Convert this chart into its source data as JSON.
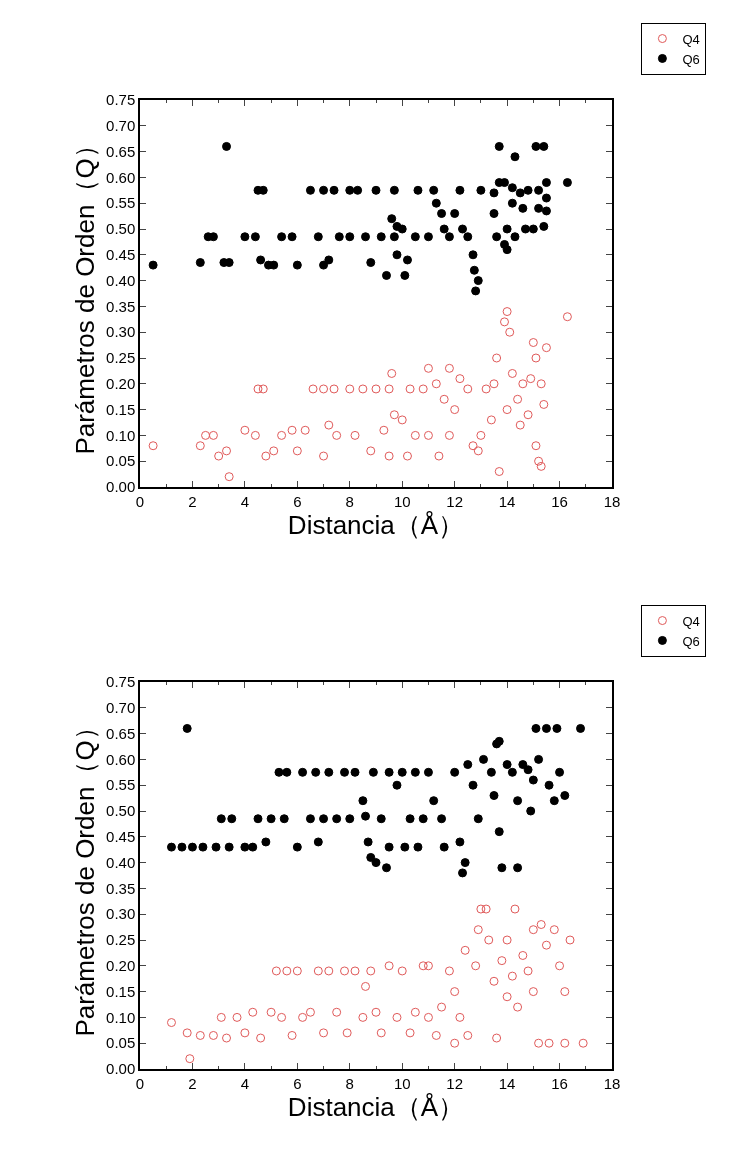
{
  "chart_data": [
    {
      "type": "scatter",
      "xlabel": "Distancia（Å）",
      "ylabel": "Parámetros de Orden（Q）",
      "legend": "top right",
      "grid": false,
      "xlim": [
        0,
        18
      ],
      "xticks": [
        0,
        2,
        4,
        6,
        8,
        10,
        12,
        14,
        16,
        18
      ],
      "ylim": [
        0,
        0.75
      ],
      "yticks": [
        {
          "value": 0,
          "label": "0.00"
        },
        {
          "value": 0.05,
          "label": "0.05"
        },
        {
          "value": 0.1,
          "label": "0.10"
        },
        {
          "value": 0.15,
          "label": "0.15"
        },
        {
          "value": 0.2,
          "label": "0.20"
        },
        {
          "value": 0.25,
          "label": "0.25"
        },
        {
          "value": 0.3,
          "label": "0.30"
        },
        {
          "value": 0.35,
          "label": "0.35"
        },
        {
          "value": 0.4,
          "label": "0.40"
        },
        {
          "value": 0.45,
          "label": "0.45"
        },
        {
          "value": 0.5,
          "label": "0.50"
        },
        {
          "value": 0.55,
          "label": "0.55"
        },
        {
          "value": 0.6,
          "label": "0.60"
        },
        {
          "value": 0.65,
          "label": "0.65"
        },
        {
          "value": 0.7,
          "label": "0.70"
        },
        {
          "value": 0.75,
          "label": "0.75"
        }
      ],
      "series": [
        {
          "name": "Q4",
          "color": "#e05a5a",
          "marker": "circle-open",
          "x": [
            0.5,
            2.3,
            2.5,
            2.8,
            3.0,
            3.3,
            3.4,
            4.0,
            4.4,
            4.5,
            4.7,
            4.8,
            5.1,
            5.4,
            5.8,
            6.0,
            6.3,
            6.6,
            7.0,
            7.2,
            7.0,
            7.5,
            7.4,
            8.0,
            8.2,
            8.5,
            9.0,
            9.5,
            8.8,
            9.3,
            9.5,
            9.6,
            9.7,
            10.0,
            10.3,
            10.8,
            10.2,
            10.5,
            11.0,
            11.3,
            11.6,
            11.4,
            11.8,
            12.0,
            12.2,
            12.5,
            12.7,
            12.9,
            13.0,
            13.2,
            13.5,
            13.6,
            13.9,
            14.0,
            14.1,
            14.2,
            14.4,
            14.5,
            14.6,
            14.9,
            15.0,
            15.1,
            15.3,
            15.4,
            15.5,
            15.1,
            15.2,
            15.3,
            13.7,
            16.3,
            11.8,
            11.0,
            14.0,
            13.4,
            14.8
          ],
          "values": [
            0.08,
            0.08,
            0.1,
            0.1,
            0.06,
            0.07,
            0.02,
            0.11,
            0.1,
            0.19,
            0.19,
            0.06,
            0.07,
            0.1,
            0.11,
            0.07,
            0.11,
            0.19,
            0.19,
            0.12,
            0.06,
            0.1,
            0.19,
            0.19,
            0.1,
            0.19,
            0.19,
            0.19,
            0.07,
            0.11,
            0.06,
            0.22,
            0.14,
            0.13,
            0.19,
            0.19,
            0.06,
            0.1,
            0.1,
            0.2,
            0.17,
            0.06,
            0.1,
            0.15,
            0.21,
            0.19,
            0.08,
            0.07,
            0.1,
            0.19,
            0.2,
            0.25,
            0.32,
            0.34,
            0.3,
            0.22,
            0.17,
            0.12,
            0.2,
            0.21,
            0.28,
            0.25,
            0.2,
            0.16,
            0.27,
            0.08,
            0.05,
            0.04,
            0.03,
            0.33,
            0.23,
            0.23,
            0.15,
            0.13,
            0.14
          ]
        },
        {
          "name": "Q6",
          "color": "#000000",
          "marker": "circle",
          "x": [
            0.5,
            2.3,
            2.6,
            2.8,
            3.2,
            3.4,
            3.3,
            4.5,
            4.7,
            4.0,
            4.4,
            4.6,
            4.9,
            5.1,
            5.4,
            5.8,
            6.0,
            6.5,
            7.0,
            6.8,
            7.2,
            7.0,
            7.4,
            8.0,
            7.6,
            8.0,
            8.3,
            9.0,
            9.7,
            8.6,
            9.2,
            9.7,
            8.8,
            9.6,
            9.8,
            10.0,
            9.4,
            10.1,
            9.8,
            10.2,
            10.6,
            11.2,
            10.5,
            11.0,
            11.3,
            11.5,
            11.8,
            12.2,
            12.5,
            12.7,
            12.75,
            12.8,
            12.9,
            13.0,
            13.5,
            13.7,
            13.9,
            14.2,
            14.5,
            14.8,
            15.2,
            13.6,
            14.0,
            14.3,
            14.7,
            15.0,
            15.4,
            13.5,
            14.2,
            14.6,
            15.2,
            15.5,
            15.5,
            13.9,
            14.0,
            13.7,
            14.3,
            15.1,
            15.4,
            16.3,
            15.5,
            12.0,
            11.6,
            12.3
          ],
          "values": [
            0.43,
            0.435,
            0.485,
            0.485,
            0.435,
            0.435,
            0.66,
            0.575,
            0.575,
            0.485,
            0.485,
            0.44,
            0.43,
            0.43,
            0.485,
            0.485,
            0.43,
            0.575,
            0.575,
            0.485,
            0.44,
            0.43,
            0.575,
            0.575,
            0.485,
            0.485,
            0.575,
            0.575,
            0.575,
            0.485,
            0.485,
            0.485,
            0.435,
            0.52,
            0.505,
            0.5,
            0.41,
            0.41,
            0.45,
            0.44,
            0.575,
            0.575,
            0.485,
            0.485,
            0.55,
            0.53,
            0.485,
            0.575,
            0.485,
            0.45,
            0.42,
            0.38,
            0.4,
            0.575,
            0.57,
            0.59,
            0.59,
            0.58,
            0.57,
            0.575,
            0.575,
            0.485,
            0.5,
            0.485,
            0.5,
            0.5,
            0.505,
            0.53,
            0.55,
            0.54,
            0.54,
            0.535,
            0.56,
            0.47,
            0.46,
            0.66,
            0.64,
            0.66,
            0.66,
            0.59,
            0.59,
            0.53,
            0.5,
            0.5
          ]
        }
      ]
    },
    {
      "type": "scatter",
      "xlabel": "Distancia（Å）",
      "ylabel": "Parámetros de Orden（Q）",
      "legend": "top right",
      "grid": false,
      "xlim": [
        0,
        18
      ],
      "xticks": [
        0,
        2,
        4,
        6,
        8,
        10,
        12,
        14,
        16,
        18
      ],
      "ylim": [
        0,
        0.75
      ],
      "yticks": [
        {
          "value": 0,
          "label": "0.00"
        },
        {
          "value": 0.05,
          "label": "0.05"
        },
        {
          "value": 0.1,
          "label": "0.10"
        },
        {
          "value": 0.15,
          "label": "0.15"
        },
        {
          "value": 0.2,
          "label": "0.20"
        },
        {
          "value": 0.25,
          "label": "0.25"
        },
        {
          "value": 0.3,
          "label": "0.30"
        },
        {
          "value": 0.35,
          "label": "0.35"
        },
        {
          "value": 0.4,
          "label": "0.40"
        },
        {
          "value": 0.45,
          "label": "0.45"
        },
        {
          "value": 0.5,
          "label": "0.50"
        },
        {
          "value": 0.55,
          "label": "0.55"
        },
        {
          "value": 0.6,
          "label": "0.60"
        },
        {
          "value": 0.65,
          "label": "0.65"
        },
        {
          "value": 0.7,
          "label": "0.70"
        },
        {
          "value": 0.75,
          "label": "0.75"
        }
      ],
      "series": [
        {
          "name": "Q4",
          "color": "#e05a5a",
          "marker": "circle-open",
          "x": [
            1.2,
            1.9,
            1.8,
            2.3,
            2.8,
            3.1,
            3.3,
            3.7,
            4.0,
            4.3,
            4.6,
            5.0,
            5.2,
            5.6,
            5.4,
            5.8,
            6.0,
            6.2,
            6.5,
            6.8,
            7.0,
            7.2,
            7.5,
            7.8,
            7.9,
            8.2,
            8.5,
            8.6,
            8.8,
            9.0,
            9.2,
            9.5,
            9.8,
            10.0,
            10.3,
            10.5,
            10.8,
            11.0,
            11.3,
            11.5,
            11.8,
            12.0,
            12.2,
            12.4,
            12.5,
            12.8,
            12.9,
            13.0,
            13.2,
            13.3,
            13.5,
            13.6,
            13.8,
            14.0,
            14.2,
            14.3,
            14.4,
            14.6,
            14.8,
            15.0,
            15.2,
            15.3,
            15.5,
            15.6,
            15.8,
            16.0,
            16.2,
            16.4,
            16.2,
            16.9,
            12.0,
            11.0,
            14.0,
            15.0
          ],
          "values": [
            0.09,
            0.02,
            0.07,
            0.065,
            0.065,
            0.1,
            0.06,
            0.1,
            0.07,
            0.11,
            0.06,
            0.11,
            0.19,
            0.19,
            0.1,
            0.065,
            0.19,
            0.1,
            0.11,
            0.19,
            0.07,
            0.19,
            0.11,
            0.19,
            0.07,
            0.19,
            0.1,
            0.16,
            0.19,
            0.11,
            0.07,
            0.2,
            0.1,
            0.19,
            0.07,
            0.11,
            0.2,
            0.1,
            0.065,
            0.12,
            0.19,
            0.15,
            0.1,
            0.23,
            0.065,
            0.2,
            0.27,
            0.31,
            0.31,
            0.25,
            0.17,
            0.06,
            0.21,
            0.25,
            0.18,
            0.31,
            0.12,
            0.22,
            0.19,
            0.27,
            0.05,
            0.28,
            0.24,
            0.05,
            0.27,
            0.2,
            0.15,
            0.25,
            0.05,
            0.05,
            0.05,
            0.2,
            0.14,
            0.15
          ]
        },
        {
          "name": "Q6",
          "color": "#000000",
          "marker": "circle",
          "x": [
            1.2,
            1.8,
            1.6,
            2.0,
            2.4,
            2.9,
            3.1,
            3.5,
            3.4,
            4.0,
            4.3,
            4.5,
            4.8,
            5.0,
            5.3,
            5.6,
            5.5,
            6.0,
            6.2,
            6.5,
            6.7,
            6.8,
            7.2,
            7.0,
            7.5,
            7.8,
            8.2,
            8.0,
            8.5,
            8.6,
            8.7,
            8.8,
            9.0,
            9.4,
            8.9,
            9.5,
            9.2,
            9.5,
            9.8,
            10.1,
            10.0,
            10.5,
            10.3,
            10.8,
            10.6,
            11.0,
            11.2,
            11.5,
            11.6,
            12.0,
            12.2,
            12.3,
            12.4,
            12.5,
            12.7,
            12.9,
            13.1,
            13.4,
            13.5,
            13.6,
            13.7,
            13.7,
            13.8,
            14.0,
            14.2,
            14.4,
            14.4,
            14.6,
            14.8,
            15.0,
            15.2,
            14.9,
            15.6,
            15.8,
            15.1,
            15.5,
            15.9,
            16.2,
            16.8,
            16.0
          ],
          "values": [
            0.43,
            0.66,
            0.43,
            0.43,
            0.43,
            0.43,
            0.485,
            0.485,
            0.43,
            0.43,
            0.43,
            0.485,
            0.44,
            0.485,
            0.575,
            0.575,
            0.485,
            0.43,
            0.575,
            0.485,
            0.575,
            0.44,
            0.575,
            0.485,
            0.485,
            0.575,
            0.575,
            0.485,
            0.52,
            0.49,
            0.44,
            0.41,
            0.4,
            0.39,
            0.575,
            0.575,
            0.485,
            0.43,
            0.55,
            0.43,
            0.575,
            0.575,
            0.485,
            0.485,
            0.43,
            0.575,
            0.52,
            0.485,
            0.43,
            0.575,
            0.44,
            0.38,
            0.4,
            0.59,
            0.55,
            0.485,
            0.6,
            0.575,
            0.53,
            0.63,
            0.635,
            0.46,
            0.39,
            0.59,
            0.575,
            0.52,
            0.39,
            0.59,
            0.58,
            0.56,
            0.6,
            0.5,
            0.55,
            0.52,
            0.66,
            0.66,
            0.66,
            0.53,
            0.66,
            0.575
          ]
        }
      ]
    }
  ]
}
